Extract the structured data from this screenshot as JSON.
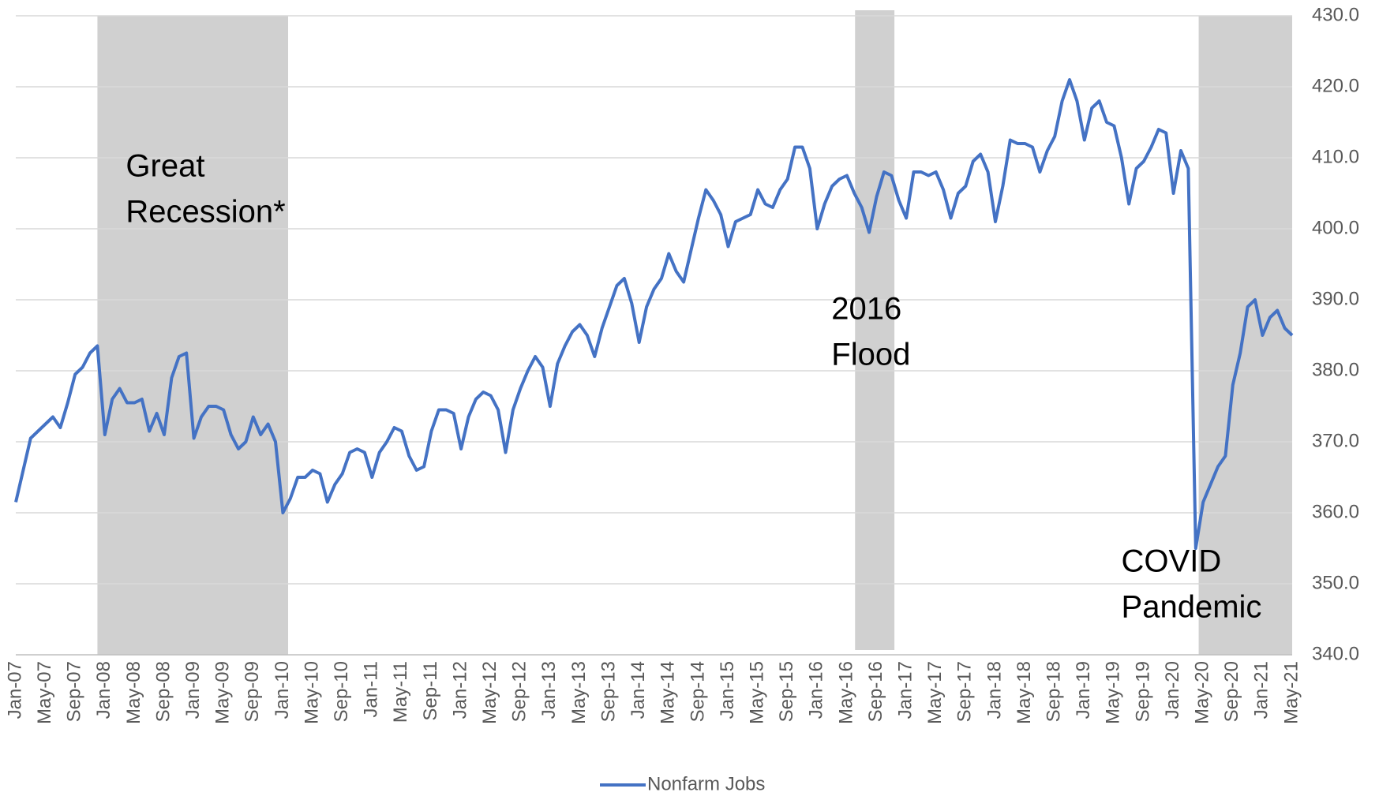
{
  "chart_data": {
    "type": "line",
    "categories": [
      "Jan-07",
      null,
      null,
      null,
      "May-07",
      null,
      null,
      null,
      "Sep-07",
      null,
      null,
      null,
      "Jan-08",
      null,
      null,
      null,
      "May-08",
      null,
      null,
      null,
      "Sep-08",
      null,
      null,
      null,
      "Jan-09",
      null,
      null,
      null,
      "May-09",
      null,
      null,
      null,
      "Sep-09",
      null,
      null,
      null,
      "Jan-10",
      null,
      null,
      null,
      "May-10",
      null,
      null,
      null,
      "Sep-10",
      null,
      null,
      null,
      "Jan-11",
      null,
      null,
      null,
      "May-11",
      null,
      null,
      null,
      "Sep-11",
      null,
      null,
      null,
      "Jan-12",
      null,
      null,
      null,
      "May-12",
      null,
      null,
      null,
      "Sep-12",
      null,
      null,
      null,
      "Jan-13",
      null,
      null,
      null,
      "May-13",
      null,
      null,
      null,
      "Sep-13",
      null,
      null,
      null,
      "Jan-14",
      null,
      null,
      null,
      "May-14",
      null,
      null,
      null,
      "Sep-14",
      null,
      null,
      null,
      "Jan-15",
      null,
      null,
      null,
      "May-15",
      null,
      null,
      null,
      "Sep-15",
      null,
      null,
      null,
      "Jan-16",
      null,
      null,
      null,
      "May-16",
      null,
      null,
      null,
      "Sep-16",
      null,
      null,
      null,
      "Jan-17",
      null,
      null,
      null,
      "May-17",
      null,
      null,
      null,
      "Sep-17",
      null,
      null,
      null,
      "Jan-18",
      null,
      null,
      null,
      "May-18",
      null,
      null,
      null,
      "Sep-18",
      null,
      null,
      null,
      "Jan-19",
      null,
      null,
      null,
      "May-19",
      null,
      null,
      null,
      "Sep-19",
      null,
      null,
      null,
      "Jan-20",
      null,
      null,
      null,
      "May-20",
      null,
      null,
      null,
      "Sep-20",
      null,
      null,
      null,
      "Jan-21",
      null,
      null,
      null,
      "May-21"
    ],
    "series": [
      {
        "name": "Nonfarm Jobs",
        "color": "#4472c4",
        "values": [
          361.5,
          366,
          370.5,
          371.5,
          372.5,
          373.5,
          372,
          375.5,
          379.5,
          380.5,
          382.5,
          383.5,
          371,
          376,
          377.5,
          375.5,
          375.5,
          376,
          371.5,
          374,
          371,
          379,
          382,
          382.5,
          370.5,
          373.5,
          375,
          375,
          374.5,
          371,
          369,
          370,
          373.5,
          371,
          372.5,
          370,
          360,
          362,
          365,
          365,
          366,
          365.5,
          361.5,
          364,
          365.5,
          368.5,
          369,
          368.5,
          365,
          368.5,
          370,
          372,
          371.5,
          368,
          366,
          366.5,
          371.5,
          374.5,
          374.5,
          374,
          369,
          373.5,
          376,
          377,
          376.5,
          374.5,
          368.5,
          374.5,
          377.5,
          380,
          382,
          380.5,
          375,
          381,
          383.5,
          385.5,
          386.5,
          385,
          382,
          386,
          389,
          392,
          393,
          389.5,
          384,
          389,
          391.5,
          393,
          396.5,
          394,
          392.5,
          397,
          401.5,
          405.5,
          404,
          402,
          397.5,
          401,
          401.5,
          402,
          405.5,
          403.5,
          403,
          405.5,
          407,
          411.5,
          411.5,
          408.5,
          400,
          403.5,
          406,
          407,
          407.5,
          405,
          403,
          399.5,
          404.5,
          408,
          407.5,
          404,
          401.5,
          408,
          408,
          407.5,
          408,
          405.5,
          401.5,
          405,
          406,
          409.5,
          410.5,
          408,
          401,
          406,
          412.5,
          412,
          412,
          411.5,
          408,
          411,
          413,
          418,
          421,
          418,
          412.5,
          417,
          418,
          415,
          414.5,
          410,
          403.5,
          408.5,
          409.5,
          411.5,
          414,
          413.5,
          405,
          411,
          408.5,
          355,
          361.5,
          364,
          366.5,
          368,
          378,
          382.5,
          389,
          390,
          385,
          387.5,
          388.5,
          386,
          385
        ]
      }
    ],
    "ylim": [
      340,
      430
    ],
    "yticks": [
      {
        "value": 340,
        "label": "340.0"
      },
      {
        "value": 350,
        "label": "350.0"
      },
      {
        "value": 360,
        "label": "360.0"
      },
      {
        "value": 370,
        "label": "370.0"
      },
      {
        "value": 380,
        "label": "380.0"
      },
      {
        "value": 390,
        "label": "390.0"
      },
      {
        "value": 400,
        "label": "400.0"
      },
      {
        "value": 410,
        "label": "410.0"
      },
      {
        "value": 420,
        "label": "420.0"
      },
      {
        "value": 430,
        "label": "430.0"
      }
    ],
    "grid": true,
    "y_axis_side": "right",
    "legend": "bottom",
    "shaded_periods": [
      {
        "lines": [
          "Great",
          "Recession*"
        ],
        "start": 11,
        "end": 36.7,
        "color": "#d0d0d0"
      },
      {
        "lines": [
          "2016",
          "Flood"
        ],
        "start": 113.1,
        "end": 118.4,
        "color": "#d0d0d0"
      },
      {
        "lines": [
          "COVID",
          "Pandemic"
        ],
        "start": 159.4,
        "end": 172,
        "color": "#d0d0d0"
      }
    ]
  }
}
